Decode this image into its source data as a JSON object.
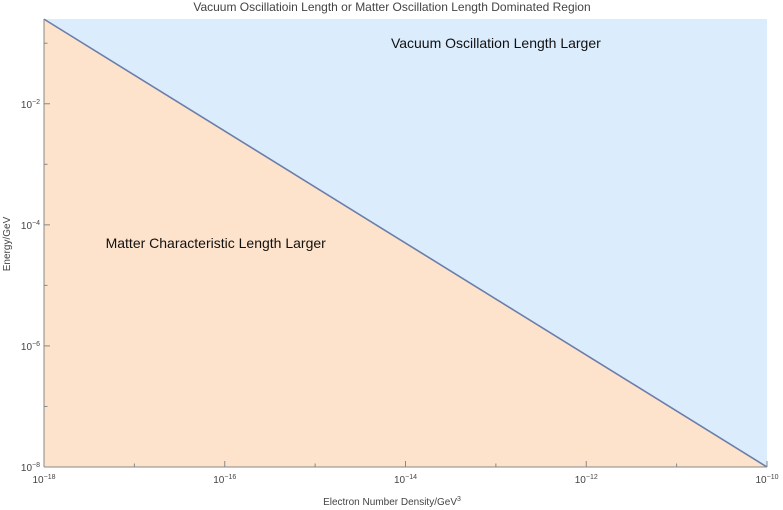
{
  "chart_data": {
    "type": "area",
    "title": "Vacuum Oscillatioin Length or Matter Oscillation Length Dominated Region",
    "xlabel_base": "Electron Number Density/GeV",
    "xlabel_exp": "3",
    "ylabel": "Energy/GeV",
    "x_scale": "log",
    "y_scale": "log",
    "x_exponent_range": [
      -18,
      -10
    ],
    "y_exponent_range": [
      -8,
      -0.6
    ],
    "x_ticks": [
      {
        "exp": -18,
        "base": "10",
        "sup": "−18"
      },
      {
        "exp": -16,
        "base": "10",
        "sup": "−16"
      },
      {
        "exp": -14,
        "base": "10",
        "sup": "−14"
      },
      {
        "exp": -12,
        "base": "10",
        "sup": "−12"
      },
      {
        "exp": -10,
        "base": "10",
        "sup": "−10"
      }
    ],
    "y_ticks": [
      {
        "exp": -8,
        "base": "10",
        "sup": "−8"
      },
      {
        "exp": -6,
        "base": "10",
        "sup": "−6"
      },
      {
        "exp": -4,
        "base": "10",
        "sup": "−4"
      },
      {
        "exp": -2,
        "base": "10",
        "sup": "−2"
      }
    ],
    "boundary_line": {
      "x": [
        1e-18,
        1e-10
      ],
      "y": [
        0.25,
        1e-08
      ]
    },
    "regions": [
      {
        "name": "upper",
        "label": "Vacuum Oscillation Length Larger",
        "color": "#dbecfd",
        "label_anchor": {
          "log_x": -13.0,
          "log_y": -1.0
        }
      },
      {
        "name": "lower",
        "label": "Matter Characteristic Length Larger",
        "color": "#fde3cb",
        "label_anchor": {
          "log_x": -16.1,
          "log_y": -4.3
        }
      }
    ],
    "line_color": "#6a7eaa",
    "grid": false,
    "legend": "none"
  }
}
